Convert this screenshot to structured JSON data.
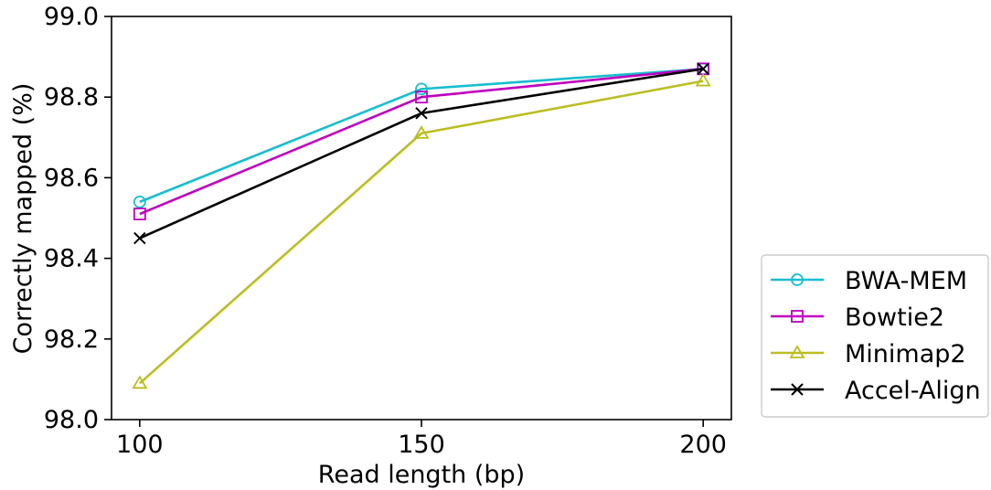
{
  "chart_data": {
    "type": "line",
    "xlabel": "Read length (bp)",
    "ylabel": "Correctly mapped (%)",
    "x": [
      100,
      150,
      200
    ],
    "xticks": [
      "100",
      "150",
      "200"
    ],
    "yticks": [
      "98.0",
      "98.2",
      "98.4",
      "98.6",
      "98.8",
      "99.0"
    ],
    "xlim": [
      95,
      205
    ],
    "ylim": [
      98.0,
      99.0
    ],
    "grid": false,
    "legend_position": "right, outside plot, bottom",
    "series": [
      {
        "name": "BWA-MEM",
        "values": [
          98.54,
          98.82,
          98.87
        ],
        "color": "#17becf",
        "marker": "circle"
      },
      {
        "name": "Bowtie2",
        "values": [
          98.51,
          98.8,
          98.87
        ],
        "color": "#bf00bf",
        "marker": "square"
      },
      {
        "name": "Minimap2",
        "values": [
          98.09,
          98.71,
          98.84
        ],
        "color": "#bcbd22",
        "marker": "triangle"
      },
      {
        "name": "Accel-Align",
        "values": [
          98.45,
          98.76,
          98.87
        ],
        "color": "#000000",
        "marker": "x"
      }
    ]
  }
}
